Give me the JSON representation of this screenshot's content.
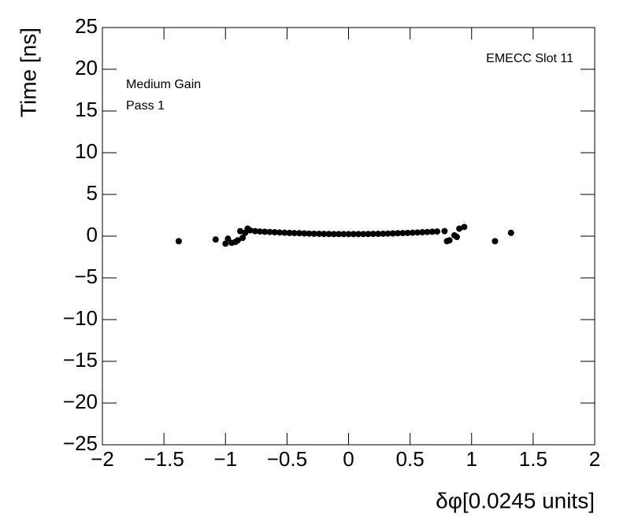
{
  "chart_data": {
    "type": "scatter",
    "x_label": "δφ[0.0245 units]",
    "y_label": "Time [ns]",
    "annotations": [
      "Medium Gain",
      "Pass 1",
      "EMECC Slot 11"
    ],
    "color": "#000000",
    "xlim": [
      -2,
      2
    ],
    "ylim": [
      -25,
      25
    ],
    "xticks": [
      {
        "value": -2,
        "label": "−2"
      },
      {
        "value": -1.5,
        "label": "−1.5"
      },
      {
        "value": -1,
        "label": "−1"
      },
      {
        "value": -0.5,
        "label": "−0.5"
      },
      0,
      0.5,
      1,
      1.5,
      2
    ],
    "yticks": [
      {
        "value": -25,
        "label": "−25"
      },
      {
        "value": -20,
        "label": "−20"
      },
      {
        "value": -15,
        "label": "−15"
      },
      {
        "value": -10,
        "label": "−10"
      },
      {
        "value": -5,
        "label": "−5"
      },
      0,
      5,
      10,
      15,
      20,
      25
    ],
    "x": [
      -1.38,
      -1.08,
      -1.0,
      -0.98,
      -0.95,
      -0.92,
      -0.9,
      -0.88,
      -0.86,
      -0.84,
      -0.82,
      -0.8,
      0.78,
      0.8,
      0.82,
      0.86,
      0.88,
      0.9,
      0.94,
      1.19,
      1.32,
      -0.76,
      -0.72,
      -0.68,
      -0.64,
      -0.6,
      -0.56,
      -0.52,
      -0.48,
      -0.44,
      -0.4,
      -0.36,
      -0.32,
      -0.28,
      -0.24,
      -0.2,
      -0.16,
      -0.12,
      -0.08,
      -0.04,
      0,
      0.04,
      0.08,
      0.12,
      0.16,
      0.2,
      0.24,
      0.28,
      0.32,
      0.36,
      0.4,
      0.44,
      0.48,
      0.52,
      0.56,
      0.6,
      0.64,
      0.68,
      0.72
    ],
    "y": [
      -0.6,
      -0.4,
      -0.9,
      -0.3,
      -0.8,
      -0.7,
      -0.5,
      0.6,
      -0.2,
      0.4,
      0.9,
      0.7,
      0.6,
      -0.6,
      -0.5,
      0.1,
      -0.1,
      0.9,
      1.1,
      -0.6,
      0.4,
      0.6,
      0.56,
      0.53,
      0.5,
      0.47,
      0.44,
      0.41,
      0.39,
      0.37,
      0.35,
      0.33,
      0.31,
      0.29,
      0.28,
      0.27,
      0.26,
      0.25,
      0.25,
      0.25,
      0.25,
      0.25,
      0.25,
      0.25,
      0.26,
      0.27,
      0.28,
      0.29,
      0.31,
      0.33,
      0.35,
      0.37,
      0.39,
      0.41,
      0.44,
      0.47,
      0.5,
      0.53,
      0.56
    ]
  }
}
